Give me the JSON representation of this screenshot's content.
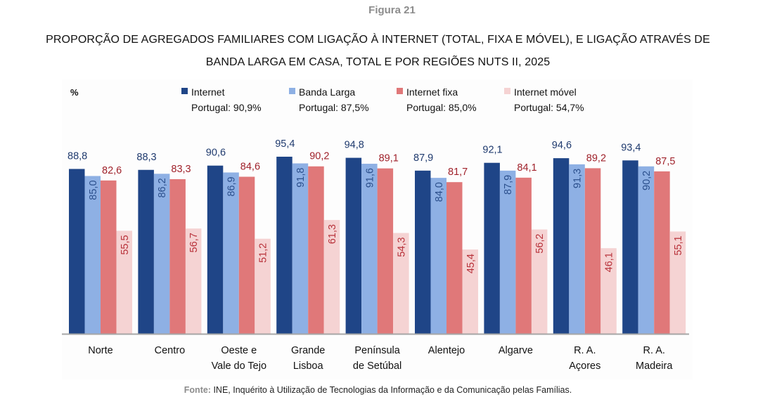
{
  "figure_label": "Figura 21",
  "title_line1": "PROPORÇÃO DE AGREGADOS FAMILIARES COM LIGAÇÃO À INTERNET (TOTAL, FIXA E MÓVEL), E LIGAÇÃO ATRAVÉS DE",
  "title_line2": "BANDA LARGA EM CASA, TOTAL E POR REGIÕES NUTS II, 2025",
  "source_label": "Fonte:",
  "source_text": "INE, Inquérito à Utilização de Tecnologias da Informação e da Comunicação pelas Famílias.",
  "chart_data": {
    "type": "bar",
    "title": "PROPORÇÃO DE AGREGADOS FAMILIARES COM LIGAÇÃO À INTERNET (TOTAL, FIXA E MÓVEL), E LIGAÇÃO ATRAVÉS DE BANDA LARGA EM CASA, TOTAL E POR REGIÕES NUTS II, 2025",
    "xlabel": "",
    "ylabel": "%",
    "ylim": [
      0,
      100
    ],
    "grid": false,
    "legend_position": "top",
    "categories": [
      [
        "Norte"
      ],
      [
        "Centro"
      ],
      [
        "Oeste e",
        "Vale do Tejo"
      ],
      [
        "Grande",
        "Lisboa"
      ],
      [
        "Península",
        "de Setúbal"
      ],
      [
        "Alentejo"
      ],
      [
        "Algarve"
      ],
      [
        "R. A.",
        "Açores"
      ],
      [
        "R. A.",
        "Madeira"
      ]
    ],
    "series": [
      {
        "name": "Internet",
        "subtitle": "Portugal: 90,9%",
        "color": "#1f4587",
        "label_color": "#1f3a6e",
        "label_style": "above",
        "values": [
          88.8,
          88.3,
          90.6,
          95.4,
          94.8,
          87.9,
          92.1,
          94.6,
          93.4
        ]
      },
      {
        "name": "Banda Larga",
        "subtitle": "Portugal: 87,5%",
        "color": "#8eb0e4",
        "label_color": "#2b4f8c",
        "label_style": "inside-vertical",
        "values": [
          85.0,
          86.2,
          86.9,
          91.8,
          91.6,
          84.0,
          87.9,
          91.3,
          90.2
        ]
      },
      {
        "name": "Internet fixa",
        "subtitle": "Portugal: 85,0%",
        "color": "#e07879",
        "label_color": "#a0222b",
        "label_style": "above",
        "values": [
          82.6,
          83.3,
          84.6,
          90.2,
          89.1,
          81.7,
          84.1,
          89.2,
          87.5
        ]
      },
      {
        "name": "Internet móvel",
        "subtitle": "Portugal: 54,7%",
        "color": "#f5d3d3",
        "label_color": "#b8323a",
        "label_style": "inside-vertical",
        "values": [
          55.5,
          56.7,
          51.2,
          61.3,
          54.3,
          45.4,
          56.2,
          46.1,
          55.1
        ]
      }
    ]
  }
}
